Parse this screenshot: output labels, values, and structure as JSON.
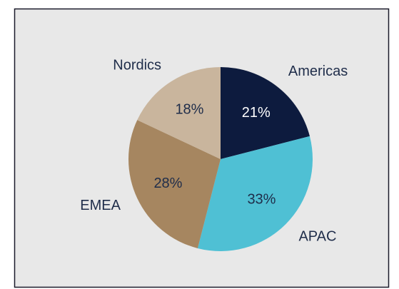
{
  "chart_data": {
    "type": "pie",
    "categories": [
      "Americas",
      "APAC",
      "EMEA",
      "Nordics"
    ],
    "values": [
      21,
      33,
      28,
      18
    ],
    "value_labels": [
      "21%",
      "33%",
      "28%",
      "18%"
    ],
    "colors": [
      "#0d1b3e",
      "#4fc0d4",
      "#a68660",
      "#c9b59d"
    ]
  }
}
